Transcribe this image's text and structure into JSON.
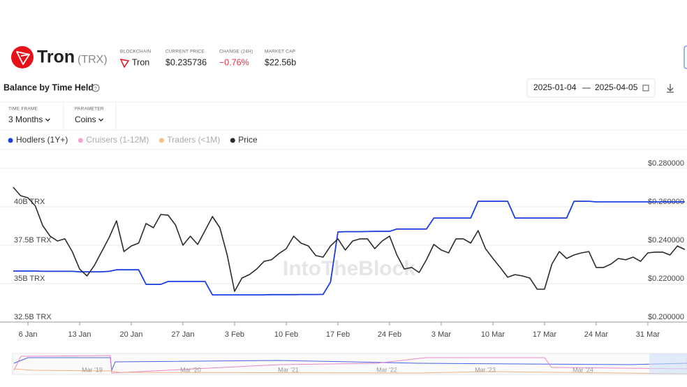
{
  "header": {
    "name": "Tron",
    "ticker": "(TRX)",
    "stats": [
      {
        "label": "BLOCKCHAIN",
        "value": "Tron"
      },
      {
        "label": "CURRENT PRICE",
        "value": "$0.235736"
      },
      {
        "label": "CHANGE (24H)",
        "value": "−0.76%"
      },
      {
        "label": "MARKET CAP",
        "value": "$22.56b"
      }
    ]
  },
  "panel": {
    "title": "Balance by Time Held",
    "date_start": "2025-01-04",
    "date_separator": "—",
    "date_end": "2025-04-05",
    "controls": [
      {
        "label": "TIME FRAME",
        "value": "3 Months"
      },
      {
        "label": "PARAMETER",
        "value": "Coins"
      }
    ]
  },
  "watermark": "IntoTheBlock",
  "navigator": {
    "labels": [
      "Mar '19",
      "Mar '20",
      "Mar '21",
      "Mar '22",
      "Mar '23",
      "Mar '24"
    ]
  },
  "chart_data": {
    "type": "line",
    "categories": [
      null,
      null,
      "6 Jan",
      null,
      null,
      null,
      null,
      null,
      null,
      "13 Jan",
      null,
      null,
      null,
      null,
      null,
      null,
      "20 Jan",
      null,
      null,
      null,
      null,
      null,
      null,
      "27 Jan",
      null,
      null,
      null,
      null,
      null,
      null,
      "3 Feb",
      null,
      null,
      null,
      null,
      null,
      null,
      "10 Feb",
      null,
      null,
      null,
      null,
      null,
      null,
      "17 Feb",
      null,
      null,
      null,
      null,
      null,
      null,
      "24 Feb",
      null,
      null,
      null,
      null,
      null,
      null,
      "3 Mar",
      null,
      null,
      null,
      null,
      null,
      null,
      "10 Mar",
      null,
      null,
      null,
      null,
      null,
      null,
      "17 Mar",
      null,
      null,
      null,
      null,
      null,
      null,
      "24 Mar",
      null,
      null,
      null,
      null,
      null,
      null,
      "31 Mar",
      null,
      null,
      null,
      null,
      null
    ],
    "series": [
      {
        "name": "Hodlers (1Y+)",
        "color": "#1a3ee0",
        "visible": true,
        "values": [
          35.82,
          35.82,
          35.82,
          35.82,
          35.8,
          35.8,
          35.8,
          35.8,
          35.8,
          35.77,
          35.77,
          35.77,
          35.77,
          35.8,
          35.9,
          35.9,
          35.9,
          35.9,
          34.95,
          34.95,
          34.95,
          35.14,
          35.14,
          35.14,
          35.14,
          35.14,
          35.14,
          34.27,
          34.27,
          34.27,
          34.27,
          34.27,
          34.27,
          34.27,
          34.27,
          34.28,
          34.28,
          34.28,
          34.28,
          34.29,
          34.29,
          34.29,
          34.3,
          35.1,
          38.36,
          38.38,
          38.38,
          38.38,
          38.39,
          38.4,
          38.4,
          38.4,
          38.55,
          38.55,
          38.55,
          38.55,
          38.55,
          39.27,
          39.27,
          39.27,
          39.27,
          39.27,
          39.27,
          40.36,
          40.36,
          40.36,
          40.36,
          40.36,
          39.27,
          39.27,
          39.27,
          39.27,
          39.27,
          39.27,
          39.27,
          39.27,
          40.36,
          40.36,
          40.36,
          40.32,
          40.32,
          40.32,
          40.32,
          40.32,
          40.32,
          40.32,
          40.32,
          40.32,
          40.32,
          40.32,
          40.32,
          40.32
        ]
      },
      {
        "name": "Cruisers (1-12M)",
        "color": "#f5a3cf",
        "visible": false
      },
      {
        "name": "Traders (<1M)",
        "color": "#f7c08c",
        "visible": false
      },
      {
        "name": "Price",
        "color": "#2b2b2b",
        "visible": true,
        "axis": "y2",
        "values": [
          0.2702,
          0.2658,
          0.2647,
          0.2604,
          0.2502,
          0.2447,
          0.2422,
          0.2433,
          0.2367,
          0.2276,
          0.224,
          0.2295,
          0.2367,
          0.244,
          0.2527,
          0.2367,
          0.2396,
          0.2411,
          0.2513,
          0.2491,
          0.256,
          0.2556,
          0.2505,
          0.24,
          0.2447,
          0.2404,
          0.2476,
          0.2549,
          0.2491,
          0.2349,
          0.216,
          0.2229,
          0.2247,
          0.2276,
          0.2316,
          0.2324,
          0.2356,
          0.2382,
          0.2447,
          0.2411,
          0.2396,
          0.2346,
          0.2338,
          0.2396,
          0.2433,
          0.2375,
          0.2422,
          0.2433,
          0.2433,
          0.2382,
          0.2422,
          0.2447,
          0.2349,
          0.2276,
          0.2284,
          0.2258,
          0.2324,
          0.2404,
          0.2375,
          0.236,
          0.2433,
          0.2433,
          0.2411,
          0.2476,
          0.2382,
          0.2331,
          0.2284,
          0.2233,
          0.2247,
          0.224,
          0.2229,
          0.2171,
          0.2171,
          0.2302,
          0.2367,
          0.2331,
          0.2349,
          0.236,
          0.2367,
          0.2284,
          0.2284,
          0.2302,
          0.2331,
          0.2324,
          0.2338,
          0.2316,
          0.236,
          0.2364,
          0.2364,
          0.2349,
          0.2396,
          0.2378
        ]
      }
    ],
    "ylim": [
      32.5,
      42.5
    ],
    "yticks": [
      {
        "value": 32.5,
        "label": "32.5B TRX"
      },
      {
        "value": 35,
        "label": "35B TRX"
      },
      {
        "value": 37.5,
        "label": "37.5B TRX"
      },
      {
        "value": 40,
        "label": "40B TRX"
      }
    ],
    "y2lim": [
      0.2,
      0.28
    ],
    "y2ticks": [
      {
        "value": 0.2,
        "label": "$0.200000"
      },
      {
        "value": 0.22,
        "label": "$0.220000"
      },
      {
        "value": 0.24,
        "label": "$0.240000"
      },
      {
        "value": 0.26,
        "label": "$0.260000"
      },
      {
        "value": 0.28,
        "label": "$0.280000"
      }
    ],
    "grid": true
  }
}
